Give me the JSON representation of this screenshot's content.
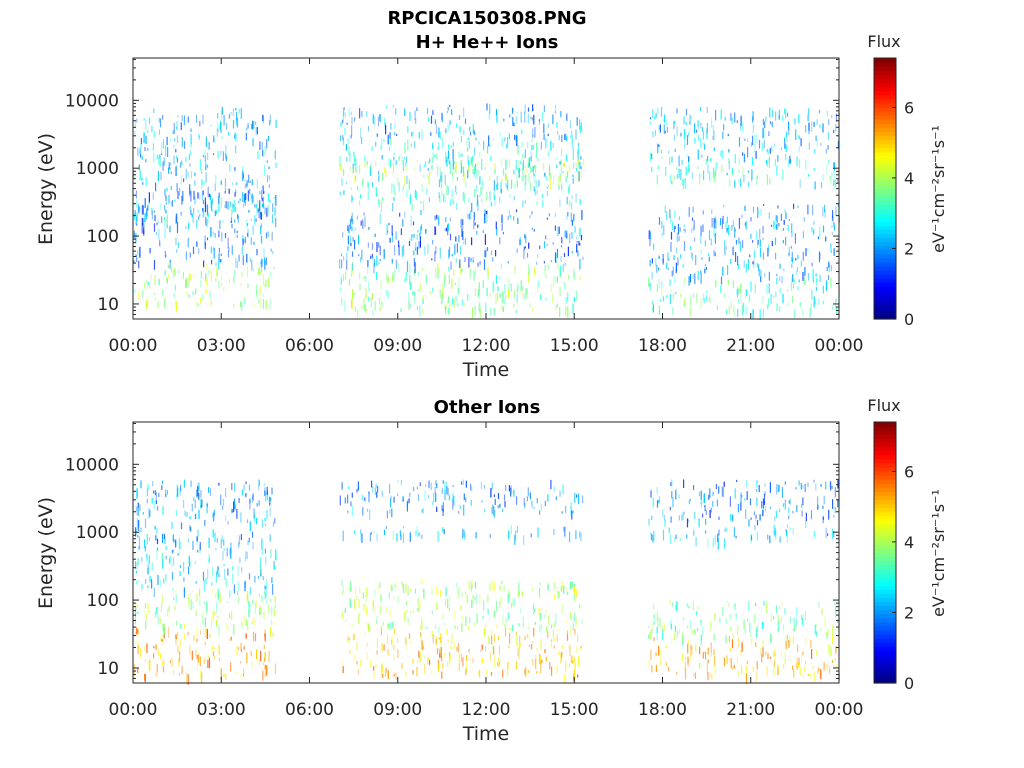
{
  "figure": {
    "title": "RPCICA150308.PNG"
  },
  "chart_data": [
    {
      "type": "heatmap",
      "title": "H+ He++ Ions",
      "xlabel": "Time",
      "ylabel": "Energy (eV)",
      "x_tick_labels": [
        "00:00",
        "03:00",
        "06:00",
        "09:00",
        "12:00",
        "15:00",
        "18:00",
        "21:00",
        "00:00"
      ],
      "x_range_hours": [
        0,
        24
      ],
      "y_tick_labels": [
        "10",
        "100",
        "1000",
        "10000"
      ],
      "y_tick_values": [
        10,
        100,
        1000,
        10000
      ],
      "y_range": [
        6,
        42000
      ],
      "y_scale": "log",
      "grid": false,
      "colorbar": {
        "label": "Flux",
        "unit": "eV⁻¹cm⁻²sr⁻¹s⁻¹",
        "range": [
          0,
          7.4
        ],
        "tick_labels": [
          "0",
          "2",
          "4",
          "6"
        ],
        "tick_values": [
          0,
          2,
          4,
          6
        ],
        "colormap": "jet"
      },
      "data_intervals_hours": [
        [
          0,
          4.85
        ],
        [
          7.0,
          15.3
        ],
        [
          17.5,
          24
        ]
      ],
      "bands": [
        {
          "interval": 0,
          "e_lo": 10,
          "e_hi": 40,
          "flux": 3.8
        },
        {
          "interval": 0,
          "e_lo": 40,
          "e_hi": 600,
          "flux": 1.8
        },
        {
          "interval": 0,
          "e_lo": 180,
          "e_hi": 450,
          "flux": 2.6
        },
        {
          "interval": 0,
          "e_lo": 600,
          "e_hi": 8000,
          "flux": 2.3
        },
        {
          "interval": 1,
          "e_lo": 8,
          "e_hi": 40,
          "flux": 3.6
        },
        {
          "interval": 1,
          "e_lo": 40,
          "e_hi": 250,
          "flux": 1.8
        },
        {
          "interval": 1,
          "e_lo": 300,
          "e_hi": 3000,
          "flux": 2.8
        },
        {
          "interval": 1,
          "e_lo": 700,
          "e_hi": 1400,
          "flux": 3.9
        },
        {
          "interval": 1,
          "e_lo": 3000,
          "e_hi": 9000,
          "flux": 2.2
        },
        {
          "interval": 2,
          "e_lo": 8,
          "e_hi": 25,
          "flux": 3.2
        },
        {
          "interval": 2,
          "e_lo": 25,
          "e_hi": 300,
          "flux": 2.0
        },
        {
          "interval": 2,
          "e_lo": 600,
          "e_hi": 1500,
          "flux": 3.0
        },
        {
          "interval": 2,
          "e_lo": 1500,
          "e_hi": 8000,
          "flux": 2.2
        }
      ]
    },
    {
      "type": "heatmap",
      "title": "Other Ions",
      "xlabel": "Time",
      "ylabel": "Energy (eV)",
      "x_tick_labels": [
        "00:00",
        "03:00",
        "06:00",
        "09:00",
        "12:00",
        "15:00",
        "18:00",
        "21:00",
        "00:00"
      ],
      "x_range_hours": [
        0,
        24
      ],
      "y_tick_labels": [
        "10",
        "100",
        "1000",
        "10000"
      ],
      "y_tick_values": [
        10,
        100,
        1000,
        10000
      ],
      "y_range": [
        6,
        42000
      ],
      "y_scale": "log",
      "grid": false,
      "colorbar": {
        "label": "Flux",
        "unit": "eV⁻¹cm⁻²sr⁻¹s⁻¹",
        "range": [
          0,
          7.4
        ],
        "tick_labels": [
          "0",
          "2",
          "4",
          "6"
        ],
        "tick_values": [
          0,
          2,
          4,
          6
        ],
        "colormap": "jet"
      },
      "data_intervals_hours": [
        [
          0,
          4.85
        ],
        [
          7.0,
          15.3
        ],
        [
          17.5,
          24
        ]
      ],
      "bands": [
        {
          "interval": 0,
          "e_lo": 8,
          "e_hi": 40,
          "flux": 5.2
        },
        {
          "interval": 0,
          "e_lo": 40,
          "e_hi": 150,
          "flux": 3.8
        },
        {
          "interval": 0,
          "e_lo": 150,
          "e_hi": 600,
          "flux": 2.5
        },
        {
          "interval": 0,
          "e_lo": 600,
          "e_hi": 6000,
          "flux": 2.1
        },
        {
          "interval": 1,
          "e_lo": 8,
          "e_hi": 40,
          "flux": 5.1
        },
        {
          "interval": 1,
          "e_lo": 40,
          "e_hi": 200,
          "flux": 3.9
        },
        {
          "interval": 1,
          "e_lo": 900,
          "e_hi": 1300,
          "flux": 2.4
        },
        {
          "interval": 1,
          "e_lo": 2000,
          "e_hi": 6000,
          "flux": 2.0
        },
        {
          "interval": 2,
          "e_lo": 8,
          "e_hi": 30,
          "flux": 5.0
        },
        {
          "interval": 2,
          "e_lo": 30,
          "e_hi": 100,
          "flux": 3.5
        },
        {
          "interval": 2,
          "e_lo": 800,
          "e_hi": 1300,
          "flux": 2.3
        },
        {
          "interval": 2,
          "e_lo": 1500,
          "e_hi": 6000,
          "flux": 1.9
        }
      ]
    }
  ]
}
